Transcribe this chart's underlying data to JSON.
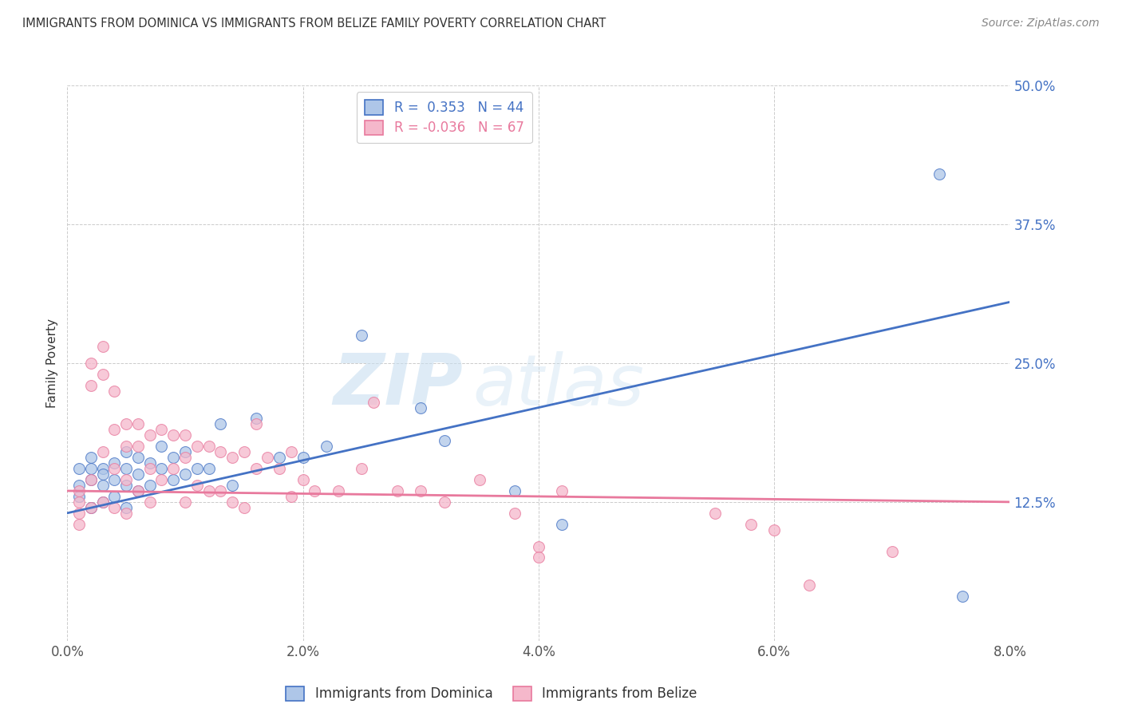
{
  "title": "IMMIGRANTS FROM DOMINICA VS IMMIGRANTS FROM BELIZE FAMILY POVERTY CORRELATION CHART",
  "source": "Source: ZipAtlas.com",
  "ylabel": "Family Poverty",
  "xlim": [
    0.0,
    0.08
  ],
  "ylim": [
    0.0,
    0.5
  ],
  "ytick_labels": [
    "12.5%",
    "25.0%",
    "37.5%",
    "50.0%"
  ],
  "ytick_values": [
    0.125,
    0.25,
    0.375,
    0.5
  ],
  "xtick_labels": [
    "0.0%",
    "2.0%",
    "4.0%",
    "6.0%",
    "8.0%"
  ],
  "xtick_values": [
    0.0,
    0.02,
    0.04,
    0.06,
    0.08
  ],
  "dominica_R": 0.353,
  "dominica_N": 44,
  "belize_R": -0.036,
  "belize_N": 67,
  "dominica_color": "#aec6e8",
  "belize_color": "#f5b8cb",
  "dominica_line_color": "#4472c4",
  "belize_line_color": "#e8799d",
  "watermark_zip": "ZIP",
  "watermark_atlas": "atlas",
  "background_color": "#ffffff",
  "dom_trend_x0": 0.0,
  "dom_trend_y0": 0.115,
  "dom_trend_x1": 0.08,
  "dom_trend_y1": 0.305,
  "bel_trend_x0": 0.0,
  "bel_trend_y0": 0.135,
  "bel_trend_x1": 0.08,
  "bel_trend_y1": 0.125,
  "dominica_x": [
    0.001,
    0.001,
    0.001,
    0.002,
    0.002,
    0.002,
    0.002,
    0.003,
    0.003,
    0.003,
    0.003,
    0.004,
    0.004,
    0.004,
    0.005,
    0.005,
    0.005,
    0.005,
    0.006,
    0.006,
    0.006,
    0.007,
    0.007,
    0.008,
    0.008,
    0.009,
    0.009,
    0.01,
    0.01,
    0.011,
    0.012,
    0.013,
    0.014,
    0.016,
    0.018,
    0.02,
    0.022,
    0.025,
    0.03,
    0.032,
    0.038,
    0.042,
    0.074,
    0.076
  ],
  "dominica_y": [
    0.155,
    0.14,
    0.13,
    0.165,
    0.155,
    0.145,
    0.12,
    0.155,
    0.15,
    0.14,
    0.125,
    0.16,
    0.145,
    0.13,
    0.17,
    0.155,
    0.14,
    0.12,
    0.165,
    0.15,
    0.135,
    0.16,
    0.14,
    0.175,
    0.155,
    0.165,
    0.145,
    0.17,
    0.15,
    0.155,
    0.155,
    0.195,
    0.14,
    0.2,
    0.165,
    0.165,
    0.175,
    0.275,
    0.21,
    0.18,
    0.135,
    0.105,
    0.42,
    0.04
  ],
  "belize_x": [
    0.001,
    0.001,
    0.001,
    0.001,
    0.002,
    0.002,
    0.002,
    0.002,
    0.003,
    0.003,
    0.003,
    0.003,
    0.004,
    0.004,
    0.004,
    0.004,
    0.005,
    0.005,
    0.005,
    0.005,
    0.006,
    0.006,
    0.006,
    0.007,
    0.007,
    0.007,
    0.008,
    0.008,
    0.009,
    0.009,
    0.01,
    0.01,
    0.01,
    0.011,
    0.011,
    0.012,
    0.012,
    0.013,
    0.013,
    0.014,
    0.014,
    0.015,
    0.015,
    0.016,
    0.016,
    0.017,
    0.018,
    0.019,
    0.019,
    0.02,
    0.021,
    0.023,
    0.025,
    0.026,
    0.028,
    0.03,
    0.032,
    0.035,
    0.038,
    0.04,
    0.04,
    0.042,
    0.055,
    0.058,
    0.06,
    0.063,
    0.07
  ],
  "belize_y": [
    0.135,
    0.125,
    0.115,
    0.105,
    0.25,
    0.23,
    0.145,
    0.12,
    0.265,
    0.24,
    0.17,
    0.125,
    0.225,
    0.19,
    0.155,
    0.12,
    0.195,
    0.175,
    0.145,
    0.115,
    0.195,
    0.175,
    0.135,
    0.185,
    0.155,
    0.125,
    0.19,
    0.145,
    0.185,
    0.155,
    0.185,
    0.165,
    0.125,
    0.175,
    0.14,
    0.175,
    0.135,
    0.17,
    0.135,
    0.165,
    0.125,
    0.17,
    0.12,
    0.195,
    0.155,
    0.165,
    0.155,
    0.17,
    0.13,
    0.145,
    0.135,
    0.135,
    0.155,
    0.215,
    0.135,
    0.135,
    0.125,
    0.145,
    0.115,
    0.085,
    0.075,
    0.135,
    0.115,
    0.105,
    0.1,
    0.05,
    0.08
  ]
}
